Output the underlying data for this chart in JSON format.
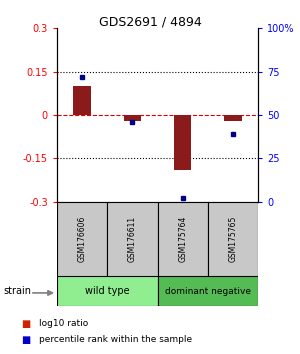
{
  "title": "GDS2691 / 4894",
  "samples": [
    "GSM176606",
    "GSM176611",
    "GSM175764",
    "GSM175765"
  ],
  "log10_ratio": [
    0.1,
    -0.02,
    -0.19,
    -0.02
  ],
  "percentile_rank": [
    72,
    46,
    2,
    39
  ],
  "ylim_left": [
    -0.3,
    0.3
  ],
  "ylim_right": [
    0,
    100
  ],
  "yticks_left": [
    -0.3,
    -0.15,
    0,
    0.15,
    0.3
  ],
  "yticks_right": [
    0,
    25,
    50,
    75,
    100
  ],
  "ytick_labels_left": [
    "-0.3",
    "-0.15",
    "0",
    "0.15",
    "0.3"
  ],
  "ytick_labels_right": [
    "0",
    "25",
    "50",
    "75",
    "100%"
  ],
  "hlines": [
    0.15,
    -0.15
  ],
  "hline_zero_color": "#dd0000",
  "hline_dotted_color": "#000000",
  "bar_color": "#8b1a1a",
  "dot_color": "#00008b",
  "bar_width": 0.35,
  "groups": [
    {
      "label": "wild type",
      "color": "#90ee90"
    },
    {
      "label": "dominant negative",
      "color": "#55bb55"
    }
  ],
  "strain_label": "strain",
  "legend_items": [
    {
      "color": "#cc2200",
      "label": "log10 ratio"
    },
    {
      "color": "#0000cc",
      "label": "percentile rank within the sample"
    }
  ],
  "bg_color": "#ffffff",
  "sample_box_color": "#c8c8c8",
  "arrow_color": "#808080"
}
